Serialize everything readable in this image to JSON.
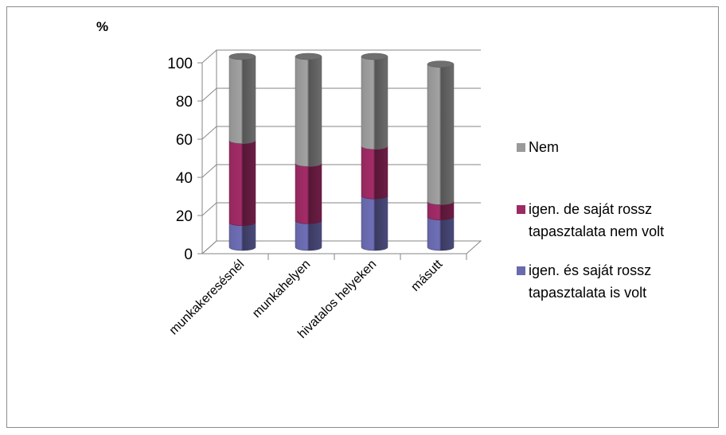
{
  "chart_data": {
    "type": "bar",
    "stacked": true,
    "three_d": true,
    "ylabel": "%",
    "ylim": [
      0,
      100
    ],
    "yticks": [
      0,
      20,
      40,
      60,
      80,
      100
    ],
    "categories": [
      "munkakeresésnél",
      "munkahelyen",
      "hivatalos helyeken",
      "másutt"
    ],
    "series": [
      {
        "name": "igen. és saját rossz tapasztalata is volt",
        "values": [
          13,
          14,
          27,
          16
        ],
        "color": "#6a6aaf"
      },
      {
        "name": "igen. de saját rossz tapasztalata nem volt",
        "values": [
          43,
          30,
          26,
          8
        ],
        "color": "#9c2a63"
      },
      {
        "name": "Nem",
        "values": [
          44,
          56,
          47,
          72
        ],
        "color": "#9a9a9a"
      }
    ],
    "legend": {
      "position": "right",
      "entries": [
        {
          "lines": [
            "Nem"
          ],
          "series_index": 2
        },
        {
          "lines": [
            "igen. de saját rossz",
            "tapasztalata nem volt"
          ],
          "series_index": 1
        },
        {
          "lines": [
            "igen. és saját rossz",
            "tapasztalata is volt"
          ],
          "series_index": 0
        }
      ]
    },
    "grid": true
  }
}
